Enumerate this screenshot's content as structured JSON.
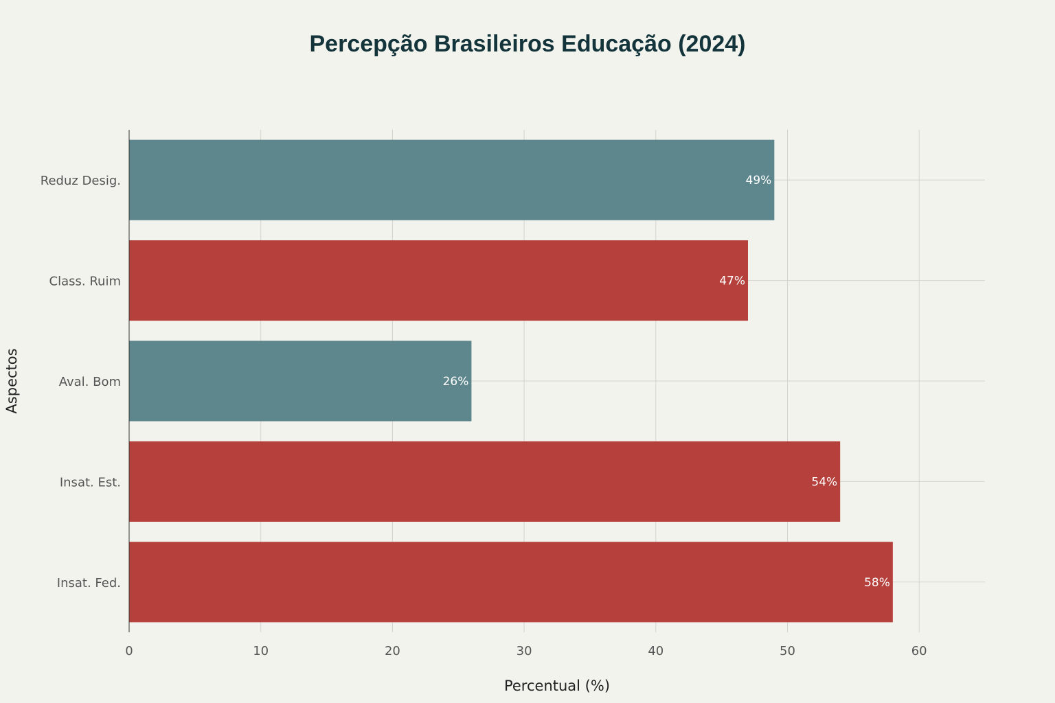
{
  "chart_data": {
    "type": "bar",
    "orientation": "horizontal",
    "title": "Percepção Brasileiros Educação (2024)",
    "xlabel": "Percentual (%)",
    "ylabel": "Aspectos",
    "xlim": [
      0,
      65
    ],
    "xticks": [
      0,
      10,
      20,
      30,
      40,
      50,
      60
    ],
    "grid": true,
    "categories": [
      "Reduz Desig.",
      "Class. Ruim",
      "Aval. Bom",
      "Insat. Est.",
      "Insat. Fed."
    ],
    "values": [
      49,
      47,
      26,
      54,
      58
    ],
    "value_labels": [
      "49%",
      "47%",
      "26%",
      "54%",
      "58%"
    ],
    "bar_colors": [
      "#5e878d",
      "#b5403c",
      "#5e878d",
      "#b5403c",
      "#b5403c"
    ]
  }
}
